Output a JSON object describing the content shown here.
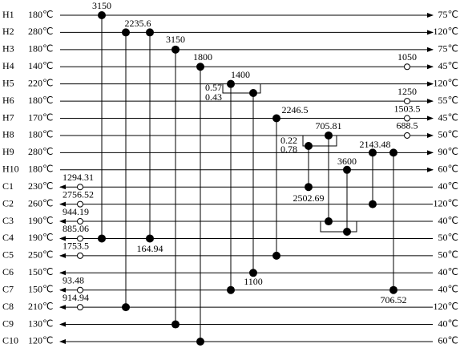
{
  "streams": [
    {
      "name": "H1",
      "left_temp": "180℃",
      "right_temp": "75℃"
    },
    {
      "name": "H2",
      "left_temp": "280℃",
      "right_temp": "120℃"
    },
    {
      "name": "H3",
      "left_temp": "180℃",
      "right_temp": "75℃"
    },
    {
      "name": "H4",
      "left_temp": "140℃",
      "right_temp": "45℃"
    },
    {
      "name": "H5",
      "left_temp": "220℃",
      "right_temp": "120℃"
    },
    {
      "name": "H6",
      "left_temp": "180℃",
      "right_temp": "55℃"
    },
    {
      "name": "H7",
      "left_temp": "170℃",
      "right_temp": "45℃"
    },
    {
      "name": "H8",
      "left_temp": "180℃",
      "right_temp": "50℃"
    },
    {
      "name": "H9",
      "left_temp": "280℃",
      "right_temp": "90℃"
    },
    {
      "name": "H10",
      "left_temp": "180℃",
      "right_temp": "60℃"
    },
    {
      "name": "C1",
      "left_temp": "230℃",
      "right_temp": "40℃"
    },
    {
      "name": "C2",
      "left_temp": "260℃",
      "right_temp": "120℃"
    },
    {
      "name": "C3",
      "left_temp": "190℃",
      "right_temp": "40℃"
    },
    {
      "name": "C4",
      "left_temp": "190℃",
      "right_temp": "50℃"
    },
    {
      "name": "C5",
      "left_temp": "250℃",
      "right_temp": "50℃"
    },
    {
      "name": "C6",
      "left_temp": "150℃",
      "right_temp": "40℃"
    },
    {
      "name": "C7",
      "left_temp": "150℃",
      "right_temp": "40℃"
    },
    {
      "name": "C8",
      "left_temp": "210℃",
      "right_temp": "120℃"
    },
    {
      "name": "C9",
      "left_temp": "130℃",
      "right_temp": "40℃"
    },
    {
      "name": "C10",
      "left_temp": "120℃",
      "right_temp": "60℃"
    }
  ],
  "exchangers": [
    {
      "duty": 3150
    },
    {
      "duty": 2235.6
    },
    {
      "duty": 164.94
    },
    {
      "duty": 3150
    },
    {
      "duty": 1800
    },
    {
      "duty": 1400
    },
    {
      "duty": 1100
    },
    {
      "duty": 2246.5
    },
    {
      "duty": 705.81
    },
    {
      "duty": 2502.69
    },
    {
      "duty": 3600
    },
    {
      "duty": 2143.48
    },
    {
      "duty": 706.52
    }
  ],
  "split_fractions": [
    0.57,
    0.43,
    0.22,
    0.78
  ],
  "utilities": [
    {
      "duty": 1050
    },
    {
      "duty": 1250
    },
    {
      "duty": 1503.5
    },
    {
      "duty": 688.5
    },
    {
      "duty": 1294.31
    },
    {
      "duty": 2756.52
    },
    {
      "duty": 944.19
    },
    {
      "duty": 885.06
    },
    {
      "duty": 1753.5
    },
    {
      "duty": 93.48
    },
    {
      "duty": 914.94
    }
  ]
}
